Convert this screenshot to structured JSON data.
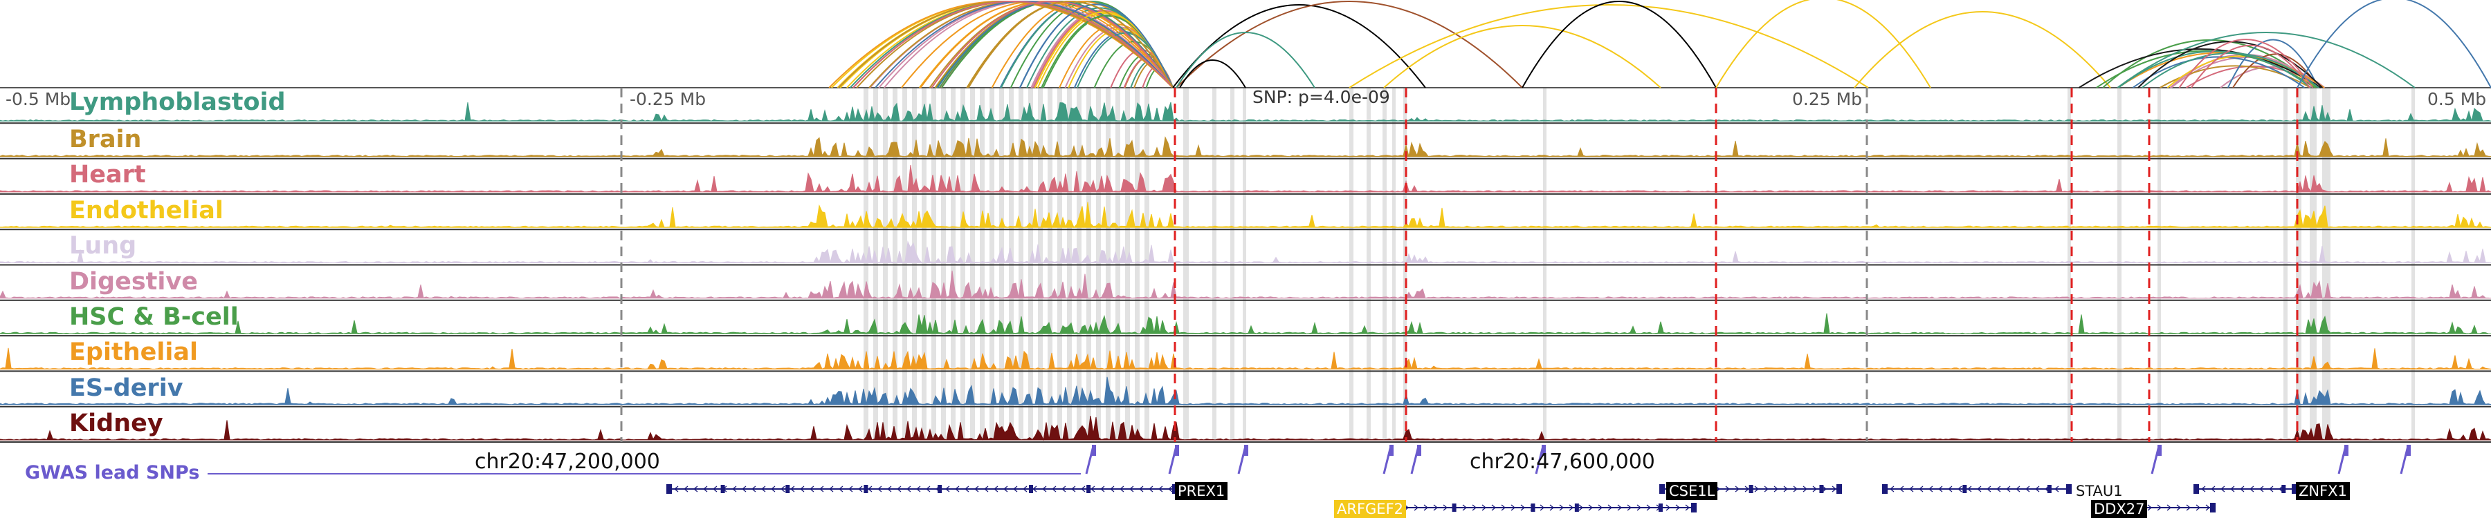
{
  "scale_labels": {
    "left": "-0.5 Mb",
    "mid_left": "-0.25 Mb",
    "mid_right": "0.25 Mb",
    "right": "0.5 Mb"
  },
  "snp_label": "SNP: p=4.0e-09",
  "coord_labels": {
    "a": "chr20:47,200,000",
    "b": "chr20:47,600,000"
  },
  "gwas_label": "GWAS lead SNPs",
  "tracks": [
    {
      "name": "Lymphoblastoid",
      "color": "#3f9a82"
    },
    {
      "name": "Brain",
      "color": "#c0902a"
    },
    {
      "name": "Heart",
      "color": "#d46a7a"
    },
    {
      "name": "Endothelial",
      "color": "#f4c81a"
    },
    {
      "name": "Lung",
      "color": "#d8cce4"
    },
    {
      "name": "Digestive",
      "color": "#cf8aa8"
    },
    {
      "name": "HSC & B-cell",
      "color": "#4a9e4a"
    },
    {
      "name": "Epithelial",
      "color": "#f09a20"
    },
    {
      "name": "ES-deriv",
      "color": "#4478ac"
    },
    {
      "name": "Kidney",
      "color": "#6e1010"
    }
  ],
  "genes": [
    {
      "name": "PREX1",
      "style": "dark"
    },
    {
      "name": "CSE1L",
      "style": "dark"
    },
    {
      "name": "STAU1",
      "style": "plain"
    },
    {
      "name": "ZNFX1",
      "style": "dark"
    },
    {
      "name": "ARFGEF2",
      "style": "gold"
    },
    {
      "name": "DDX27",
      "style": "dark"
    }
  ],
  "colors": {
    "loop_palette": [
      "#3f9a82",
      "#c0902a",
      "#d46a7a",
      "#f4c81a",
      "#cf8aa8",
      "#4a9e4a",
      "#f09a20",
      "#4478ac",
      "#1a1a1a",
      "#a0522d"
    ]
  }
}
